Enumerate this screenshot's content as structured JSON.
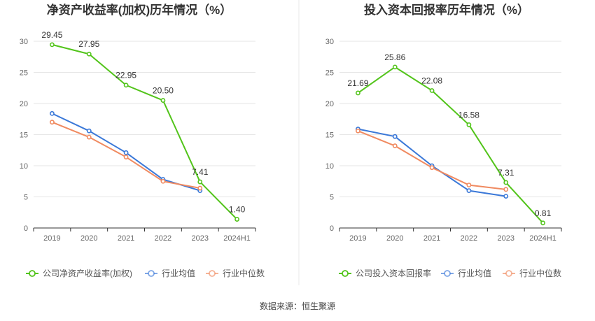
{
  "source_label": "数据来源：恒生聚源",
  "colors": {
    "company": "#52c41a",
    "industry_avg": "#3a78d8",
    "industry_median": "#f08a60",
    "grid": "#e6e6e6",
    "axis": "#333333",
    "divider": "#e8e8e8"
  },
  "chart_data": [
    {
      "type": "line",
      "title": "净资产收益率(加权)历年情况（%）",
      "categories": [
        "2019",
        "2020",
        "2021",
        "2022",
        "2023",
        "2024H1"
      ],
      "ylim": [
        0,
        30
      ],
      "yticks": [
        0,
        5,
        10,
        15,
        20,
        25,
        30
      ],
      "grid": true,
      "legend_position": "bottom",
      "series": [
        {
          "name": "公司净资产收益率(加权)",
          "values": [
            29.45,
            27.95,
            22.95,
            20.5,
            7.41,
            1.4
          ],
          "labels": [
            "29.45",
            "27.95",
            "22.95",
            "20.50",
            "7.41",
            "1.40"
          ]
        },
        {
          "name": "行业均值",
          "values": [
            18.4,
            15.6,
            12.1,
            7.8,
            6.0,
            null
          ]
        },
        {
          "name": "行业中位数",
          "values": [
            17.0,
            14.6,
            11.4,
            7.5,
            6.4,
            null
          ]
        }
      ]
    },
    {
      "type": "line",
      "title": "投入资本回报率历年情况（%）",
      "categories": [
        "2019",
        "2020",
        "2021",
        "2022",
        "2023",
        "2024H1"
      ],
      "ylim": [
        0,
        30
      ],
      "yticks": [
        0,
        5,
        10,
        15,
        20,
        25,
        30
      ],
      "grid": true,
      "legend_position": "bottom",
      "series": [
        {
          "name": "公司投入资本回报率",
          "values": [
            21.69,
            25.86,
            22.08,
            16.58,
            7.31,
            0.81
          ],
          "labels": [
            "21.69",
            "25.86",
            "22.08",
            "16.58",
            "7.31",
            "0.81"
          ]
        },
        {
          "name": "行业均值",
          "values": [
            15.9,
            14.7,
            10.0,
            6.0,
            5.1,
            null
          ]
        },
        {
          "name": "行业中位数",
          "values": [
            15.6,
            13.2,
            9.7,
            6.9,
            6.2,
            null
          ]
        }
      ]
    }
  ]
}
